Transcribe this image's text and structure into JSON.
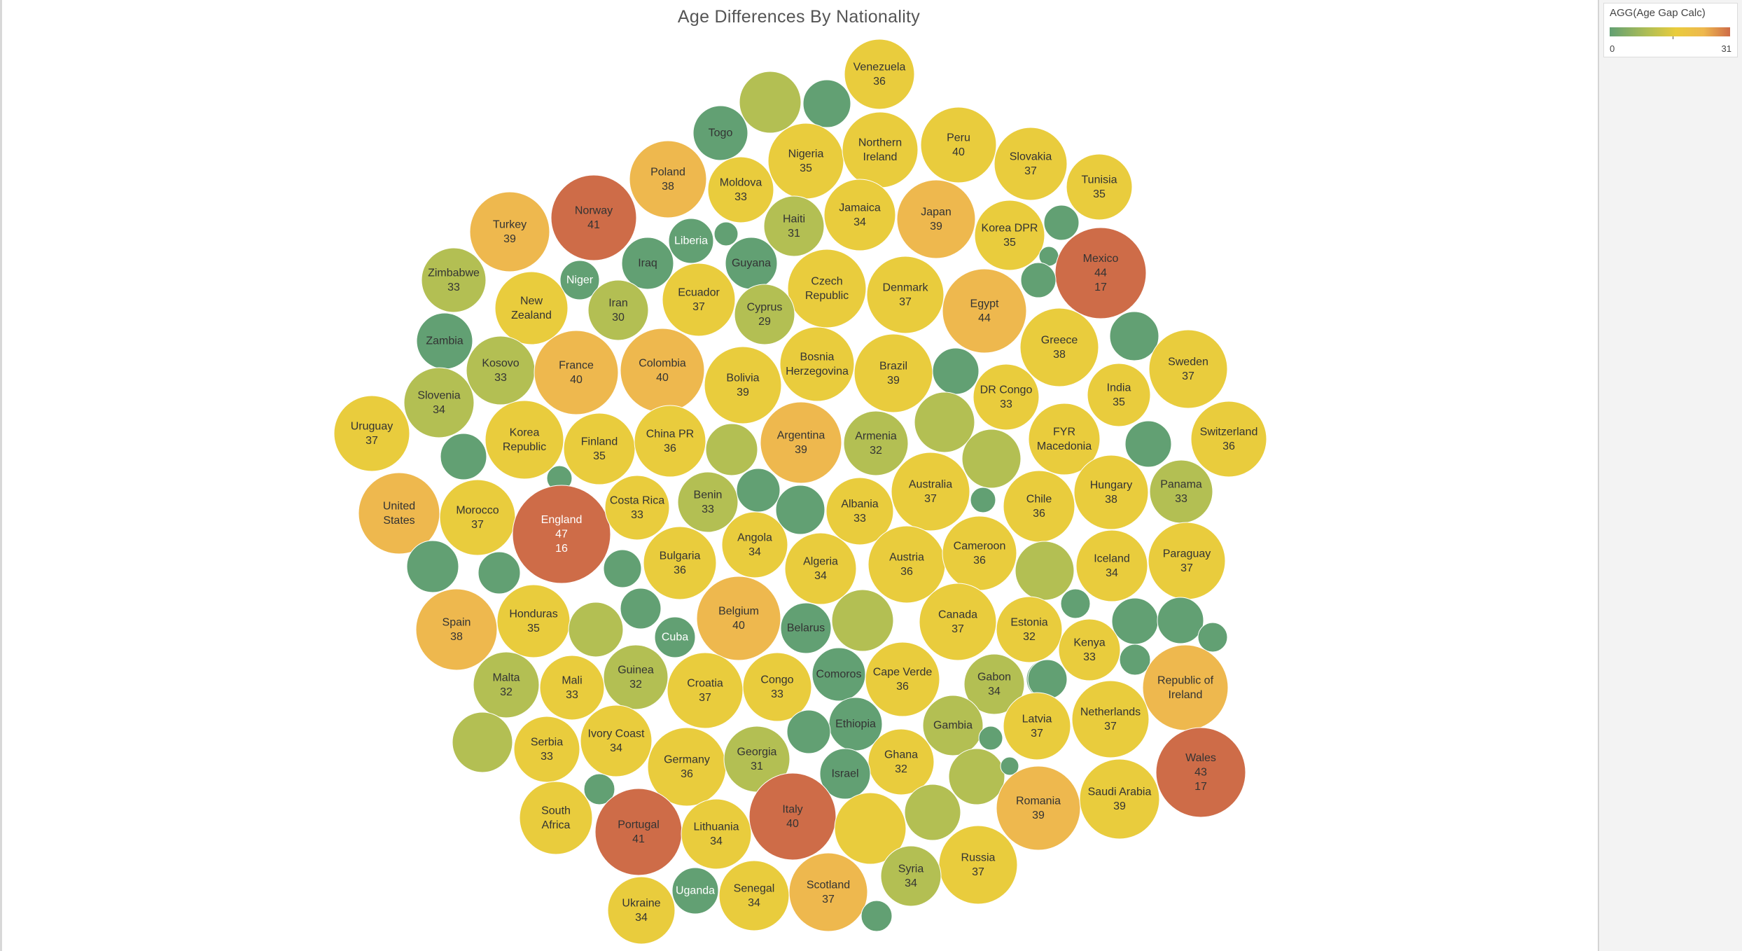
{
  "title": "Age Differences By Nationality",
  "legend": {
    "title": "AGG(Age Gap Calc)",
    "min": "0",
    "max": "31"
  },
  "colors": {
    "scale": [
      "#62a073",
      "#b3bf53",
      "#e9cc3d",
      "#eeb84e",
      "#ce6c48"
    ],
    "label_dark": "#333333",
    "label_light": "#ffffff"
  },
  "chart_data": {
    "type": "bubble",
    "title": "Age Differences By Nationality",
    "color_measure": "AGG(Age Gap Calc)",
    "color_range": [
      0,
      31
    ],
    "bubbles": [
      {
        "label": [
          "Venezuela"
        ],
        "value": "36"
      },
      {
        "label": [],
        "value": null
      },
      {
        "label": [],
        "value": null
      },
      {
        "label": [
          "Togo"
        ],
        "value": null
      },
      {
        "label": [
          "Nigeria"
        ],
        "value": "35"
      },
      {
        "label": [
          "Northern",
          "Ireland"
        ],
        "value": null
      },
      {
        "label": [
          "Peru"
        ],
        "value": "40"
      },
      {
        "label": [
          "Slovakia"
        ],
        "value": "37"
      },
      {
        "label": [
          "Tunisia"
        ],
        "value": "35"
      },
      {
        "label": [
          "Poland"
        ],
        "value": "38"
      },
      {
        "label": [
          "Moldova"
        ],
        "value": "33"
      },
      {
        "label": [
          "Haiti"
        ],
        "value": "31"
      },
      {
        "label": [
          "Jamaica"
        ],
        "value": "34"
      },
      {
        "label": [
          "Japan"
        ],
        "value": "39"
      },
      {
        "label": [
          "Korea DPR"
        ],
        "value": "35"
      },
      {
        "label": [
          "Norway"
        ],
        "value": "41"
      },
      {
        "label": [
          "Turkey"
        ],
        "value": "39"
      },
      {
        "label": [
          "Liberia"
        ],
        "value": null
      },
      {
        "label": [],
        "value": null
      },
      {
        "label": [],
        "value": null
      },
      {
        "label": [],
        "value": null
      },
      {
        "label": [
          "Mexico"
        ],
        "value": "44",
        "extra": "17"
      },
      {
        "label": [
          "Zimbabwe"
        ],
        "value": "33"
      },
      {
        "label": [
          "Niger"
        ],
        "value": null
      },
      {
        "label": [
          "Iraq"
        ],
        "value": null
      },
      {
        "label": [
          "Guyana"
        ],
        "value": null
      },
      {
        "label": [],
        "value": null
      },
      {
        "label": [
          "New",
          "Zealand"
        ],
        "value": null
      },
      {
        "label": [
          "Iran"
        ],
        "value": "30"
      },
      {
        "label": [
          "Ecuador"
        ],
        "value": "37"
      },
      {
        "label": [
          "Czech",
          "Republic"
        ],
        "value": null
      },
      {
        "label": [
          "Denmark"
        ],
        "value": "37"
      },
      {
        "label": [
          "Egypt"
        ],
        "value": "44"
      },
      {
        "label": [
          "Cyprus"
        ],
        "value": "29"
      },
      {
        "label": [
          "Zambia"
        ],
        "value": null
      },
      {
        "label": [
          "Greece"
        ],
        "value": "38"
      },
      {
        "label": [],
        "value": null
      },
      {
        "label": [
          "Kosovo"
        ],
        "value": "33"
      },
      {
        "label": [
          "France"
        ],
        "value": "40"
      },
      {
        "label": [
          "Colombia"
        ],
        "value": "40"
      },
      {
        "label": [
          "Bosnia",
          "Herzegovina"
        ],
        "value": null
      },
      {
        "label": [
          "Bolivia"
        ],
        "value": "39"
      },
      {
        "label": [
          "Brazil"
        ],
        "value": "39"
      },
      {
        "label": [
          "Sweden"
        ],
        "value": "37"
      },
      {
        "label": [
          "Slovenia"
        ],
        "value": "34"
      },
      {
        "label": [],
        "value": null
      },
      {
        "label": [
          "DR Congo"
        ],
        "value": "33"
      },
      {
        "label": [
          "India"
        ],
        "value": "35"
      },
      {
        "label": [
          "Uruguay"
        ],
        "value": "37"
      },
      {
        "label": [
          "Korea",
          "Republic"
        ],
        "value": null
      },
      {
        "label": [
          "Finland"
        ],
        "value": "35"
      },
      {
        "label": [
          "China PR"
        ],
        "value": "36"
      },
      {
        "label": [],
        "value": null
      },
      {
        "label": [
          "Argentina"
        ],
        "value": "39"
      },
      {
        "label": [
          "Armenia"
        ],
        "value": "32"
      },
      {
        "label": [],
        "value": null
      },
      {
        "label": [
          "FYR",
          "Macedonia"
        ],
        "value": null
      },
      {
        "label": [
          "Switzerland"
        ],
        "value": "36"
      },
      {
        "label": [],
        "value": null
      },
      {
        "label": [],
        "value": null
      },
      {
        "label": [],
        "value": null
      },
      {
        "label": [],
        "value": null
      },
      {
        "label": [
          "United",
          "States"
        ],
        "value": null
      },
      {
        "label": [
          "Morocco"
        ],
        "value": "37"
      },
      {
        "label": [
          "England"
        ],
        "value": "47",
        "extra": "16"
      },
      {
        "label": [
          "Costa Rica"
        ],
        "value": "33"
      },
      {
        "label": [
          "Benin"
        ],
        "value": "33"
      },
      {
        "label": [],
        "value": null
      },
      {
        "label": [
          "Albania"
        ],
        "value": "33"
      },
      {
        "label": [
          "Australia"
        ],
        "value": "37"
      },
      {
        "label": [],
        "value": null
      },
      {
        "label": [
          "Chile"
        ],
        "value": "36"
      },
      {
        "label": [
          "Hungary"
        ],
        "value": "38"
      },
      {
        "label": [
          "Panama"
        ],
        "value": "33"
      },
      {
        "label": [],
        "value": null
      },
      {
        "label": [
          "Angola"
        ],
        "value": "34"
      },
      {
        "label": [],
        "value": null
      },
      {
        "label": [
          "Bulgaria"
        ],
        "value": "36"
      },
      {
        "label": [],
        "value": null
      },
      {
        "label": [],
        "value": null
      },
      {
        "label": [
          "Algeria"
        ],
        "value": "34"
      },
      {
        "label": [
          "Austria"
        ],
        "value": "36"
      },
      {
        "label": [
          "Cameroon"
        ],
        "value": "36"
      },
      {
        "label": [],
        "value": null
      },
      {
        "label": [
          "Iceland"
        ],
        "value": "34"
      },
      {
        "label": [
          "Paraguay"
        ],
        "value": "37"
      },
      {
        "label": [],
        "value": null
      },
      {
        "label": [
          "Spain"
        ],
        "value": "38"
      },
      {
        "label": [
          "Honduras"
        ],
        "value": "35"
      },
      {
        "label": [],
        "value": null
      },
      {
        "label": [],
        "value": null
      },
      {
        "label": [
          "Cuba"
        ],
        "value": null
      },
      {
        "label": [
          "Belgium"
        ],
        "value": "40"
      },
      {
        "label": [
          "Belarus"
        ],
        "value": null
      },
      {
        "label": [],
        "value": null
      },
      {
        "label": [
          "Canada"
        ],
        "value": "37"
      },
      {
        "label": [
          "Estonia"
        ],
        "value": "32"
      },
      {
        "label": [],
        "value": null
      },
      {
        "label": [
          "Kenya"
        ],
        "value": "33"
      },
      {
        "label": [],
        "value": null
      },
      {
        "label": [],
        "value": null
      },
      {
        "label": [],
        "value": null
      },
      {
        "label": [],
        "value": null
      },
      {
        "label": [
          "Malta"
        ],
        "value": "32"
      },
      {
        "label": [
          "Mali"
        ],
        "value": "33"
      },
      {
        "label": [
          "Guinea"
        ],
        "value": "32"
      },
      {
        "label": [
          "Croatia"
        ],
        "value": "37"
      },
      {
        "label": [
          "Congo"
        ],
        "value": "33"
      },
      {
        "label": [
          "Comoros"
        ],
        "value": null
      },
      {
        "label": [
          "Cape Verde"
        ],
        "value": "36"
      },
      {
        "label": [
          "Gabon"
        ],
        "value": "34"
      },
      {
        "label": [],
        "value": null
      },
      {
        "label": [
          "Republic of",
          "Ireland"
        ],
        "value": null
      },
      {
        "label": [
          "Netherlands"
        ],
        "value": "37"
      },
      {
        "label": [],
        "value": null
      },
      {
        "label": [
          "Serbia"
        ],
        "value": "33"
      },
      {
        "label": [
          "Ivory Coast"
        ],
        "value": "34"
      },
      {
        "label": [
          "Ethiopia"
        ],
        "value": null
      },
      {
        "label": [],
        "value": null
      },
      {
        "label": [
          "Gambia"
        ],
        "value": null
      },
      {
        "label": [
          "Latvia"
        ],
        "value": "37"
      },
      {
        "label": [],
        "value": null
      },
      {
        "label": [
          "Germany"
        ],
        "value": "36"
      },
      {
        "label": [
          "Georgia"
        ],
        "value": "31"
      },
      {
        "label": [
          "Ghana"
        ],
        "value": "32"
      },
      {
        "label": [
          "Israel"
        ],
        "value": null
      },
      {
        "label": [],
        "value": null
      },
      {
        "label": [],
        "value": null
      },
      {
        "label": [
          "Wales"
        ],
        "value": "43",
        "extra": "17"
      },
      {
        "label": [
          "South",
          "Africa"
        ],
        "value": null
      },
      {
        "label": [],
        "value": null
      },
      {
        "label": [
          "Portugal"
        ],
        "value": "41"
      },
      {
        "label": [
          "Lithuania"
        ],
        "value": "34"
      },
      {
        "label": [
          "Italy"
        ],
        "value": "40"
      },
      {
        "label": [],
        "value": null
      },
      {
        "label": [],
        "value": null
      },
      {
        "label": [
          "Romania"
        ],
        "value": "39"
      },
      {
        "label": [
          "Saudi Arabia"
        ],
        "value": "39"
      },
      {
        "label": [
          "Russia"
        ],
        "value": "37"
      },
      {
        "label": [
          "Syria"
        ],
        "value": "34"
      },
      {
        "label": [
          "Uganda"
        ],
        "value": null
      },
      {
        "label": [
          "Senegal"
        ],
        "value": "34"
      },
      {
        "label": [
          "Scotland"
        ],
        "value": "37"
      },
      {
        "label": [],
        "value": null
      },
      {
        "label": [
          "Ukraine"
        ],
        "value": "34"
      }
    ]
  }
}
